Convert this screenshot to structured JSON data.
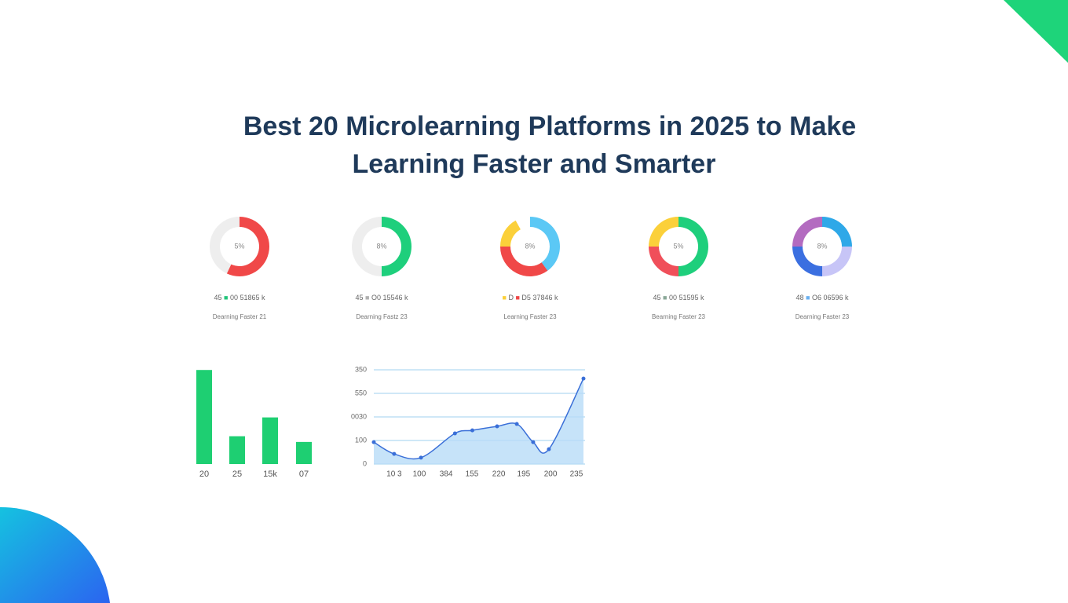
{
  "title_lines": [
    "Best 20 Microlearning Platforms in 2025 to Make",
    "Learning Faster and Smarter"
  ],
  "chart_data": [
    {
      "type": "pie",
      "center_label": "5%",
      "values": [
        57,
        43
      ],
      "colors": [
        "#f04848",
        "#eeeeee"
      ],
      "legend_prefix": "45",
      "legend": [
        {
          "color": "#22c47a",
          "label": "00 51865 k"
        }
      ],
      "caption": "Dearning Faster 21"
    },
    {
      "type": "pie",
      "center_label": "8%",
      "values": [
        50,
        50
      ],
      "colors": [
        "#1ecf7c",
        "#eeeeee"
      ],
      "legend_prefix": "45",
      "legend": [
        {
          "color": "#b0b0b0",
          "label": "O0 15546 k"
        }
      ],
      "caption": "Dearning Fastz 23"
    },
    {
      "type": "pie",
      "center_label": "8%",
      "values": [
        40,
        35,
        17,
        8
      ],
      "colors": [
        "#5bc8f5",
        "#f04848",
        "#fbd03a",
        "#ffffff"
      ],
      "legend": [
        {
          "color": "#fbd03a",
          "label": "D"
        },
        {
          "color": "#f04848",
          "label": "D5 37846 k"
        }
      ],
      "caption": "Learning Faster 23"
    },
    {
      "type": "pie",
      "center_label": "5%",
      "values": [
        50,
        25,
        25
      ],
      "colors": [
        "#1ecf7c",
        "#f04f5a",
        "#fbd03a"
      ],
      "legend_prefix": "45",
      "legend": [
        {
          "color": "#8aa898",
          "label": "00 51595 k"
        }
      ],
      "caption": "Bearning Faster 23"
    },
    {
      "type": "pie",
      "center_label": "8%",
      "values": [
        25,
        25,
        25,
        25
      ],
      "colors": [
        "#2ea8e8",
        "#c7c5f7",
        "#3b6fe0",
        "#b36bc0"
      ],
      "legend_prefix": "48",
      "legend": [
        {
          "color": "#6ab0f0",
          "label": "O6 06596 k"
        }
      ],
      "caption": "Dearning Faster 23"
    },
    {
      "type": "bar",
      "categories": [
        "20",
        "25",
        "15k",
        "07"
      ],
      "values": [
        115,
        34,
        57,
        27
      ],
      "color": "#1ecf72",
      "ylim": [
        0,
        120
      ]
    },
    {
      "type": "line",
      "xlim": [
        0,
        10
      ],
      "ylim": [
        0,
        400
      ],
      "yticks": [
        0,
        100,
        {
          "value": 200,
          "label": "0030"
        },
        {
          "value": 300,
          "label": "550"
        },
        {
          "value": 400,
          "label": "350"
        }
      ],
      "xticks": [
        {
          "value": 0.97,
          "label": "10 3"
        },
        {
          "value": 2.17,
          "label": "100"
        },
        {
          "value": 3.45,
          "label": "384"
        },
        {
          "value": 4.68,
          "label": "155"
        },
        {
          "value": 5.96,
          "label": "220"
        },
        {
          "value": 7.15,
          "label": "195"
        },
        {
          "value": 8.43,
          "label": "200"
        },
        {
          "value": 9.66,
          "label": "235"
        }
      ],
      "grid": true,
      "series": [
        {
          "color": "#3a6fd8",
          "x": [
            0,
            0.97,
            2.25,
            3.87,
            4.7,
            5.88,
            6.82,
            7.6,
            8.35,
            10
          ],
          "values": [
            93,
            43,
            27,
            130,
            143,
            160,
            170,
            93,
            63,
            363
          ]
        }
      ]
    }
  ]
}
